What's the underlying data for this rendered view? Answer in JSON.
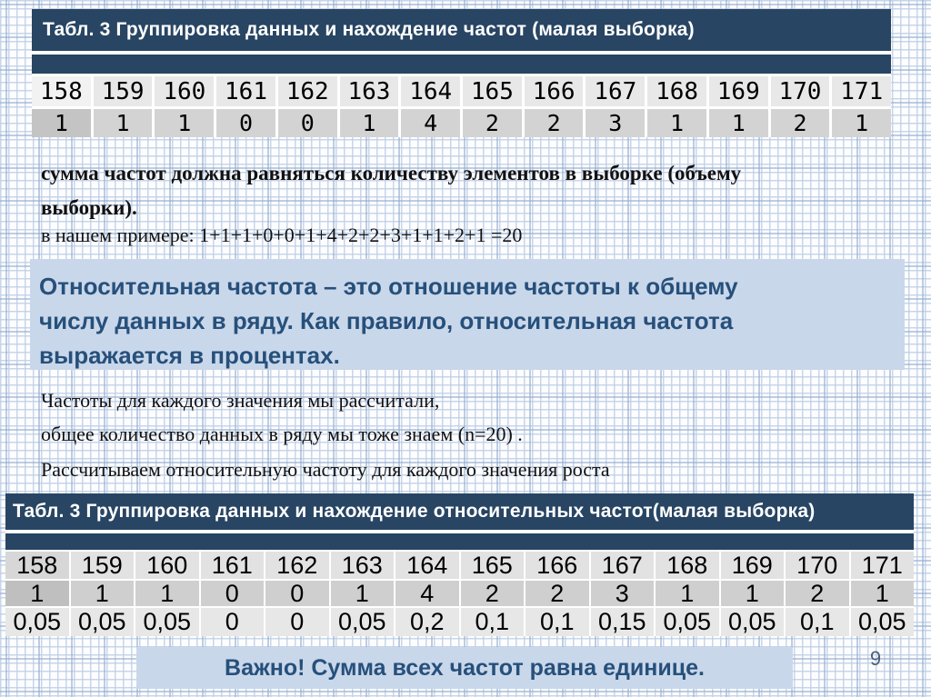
{
  "slide": {
    "page_number": "9"
  },
  "colors": {
    "header_navy": "#284563",
    "panel_blue": "#c9d7ea",
    "accent_text_blue": "#26507b",
    "cell_light_gray": "#e8e8e8",
    "cell_dark_gray": "#d3d3d3"
  },
  "table1": {
    "title": "Табл. 3 Группировка данных и нахождение частот (малая выборка)",
    "values": [
      "158",
      "159",
      "160",
      "161",
      "162",
      "163",
      "164",
      "165",
      "166",
      "167",
      "168",
      "169",
      "170",
      "171"
    ],
    "frequencies": [
      "1",
      "1",
      "1",
      "0",
      "0",
      "1",
      "4",
      "2",
      "2",
      "3",
      "1",
      "1",
      "2",
      "1"
    ]
  },
  "sum_note": {
    "lines_bold": [
      "сумма частот должна равняться количеству элементов в выборке (объему",
      "выборки)."
    ],
    "example": "в нашем примере: 1+1+1+0+0+1+4+2+2+3+1+1+2+1 =20"
  },
  "definition_box": {
    "lines": [
      "Относительная частота – это отношение частоты к общему",
      "числу данных в ряду. Как правило, относительная частота",
      "выражается в процентах."
    ]
  },
  "narrative": {
    "line1": "Частоты для каждого значения мы рассчитали,",
    "line2": "общее количество данных в ряду мы тоже знаем (n=20) .",
    "line3": "Рассчитываем относительную частоту для каждого значения роста"
  },
  "table2": {
    "title": "Табл. 3 Группировка данных и нахождение относительных частот(малая выборка)",
    "values": [
      "158",
      "159",
      "160",
      "161",
      "162",
      "163",
      "164",
      "165",
      "166",
      "167",
      "168",
      "169",
      "170",
      "171"
    ],
    "frequencies": [
      "1",
      "1",
      "1",
      "0",
      "0",
      "1",
      "4",
      "2",
      "2",
      "3",
      "1",
      "1",
      "2",
      "1"
    ],
    "relative_frequencies": [
      "0,05",
      "0,05",
      "0,05",
      "0",
      "0",
      "0,05",
      "0,2",
      "0,1",
      "0,1",
      "0,15",
      "0,05",
      "0,05",
      "0,1",
      "0,05"
    ]
  },
  "important_box": {
    "text": "Важно! Сумма всех частот равна единице."
  }
}
